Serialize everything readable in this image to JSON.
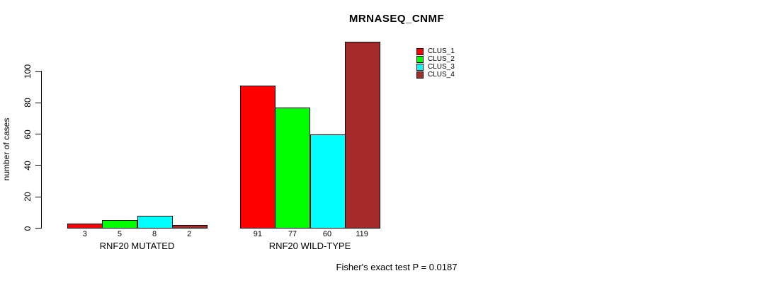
{
  "chart_data": {
    "type": "bar",
    "title": "MRNASEQ_CNMF",
    "ylabel": "number of cases",
    "xlabel": "",
    "categories": [
      "RNF20 MUTATED",
      "RNF20 WILD-TYPE"
    ],
    "series": [
      {
        "name": "CLUS_1",
        "color": "#FF0000",
        "values": [
          3,
          91
        ]
      },
      {
        "name": "CLUS_2",
        "color": "#00FF00",
        "values": [
          5,
          77
        ]
      },
      {
        "name": "CLUS_3",
        "color": "#00FFFF",
        "values": [
          8,
          60
        ]
      },
      {
        "name": "CLUS_4",
        "color": "#A52A2A",
        "values": [
          2,
          119
        ]
      }
    ],
    "yticks": [
      0,
      20,
      40,
      60,
      80,
      100
    ],
    "ylim": [
      0,
      100
    ],
    "grid": false,
    "bar_borders": "#000000",
    "bar_value_labels": true,
    "legend_position": "inside-top-right",
    "annotation": "Fisher's exact test P = 0.0187"
  }
}
